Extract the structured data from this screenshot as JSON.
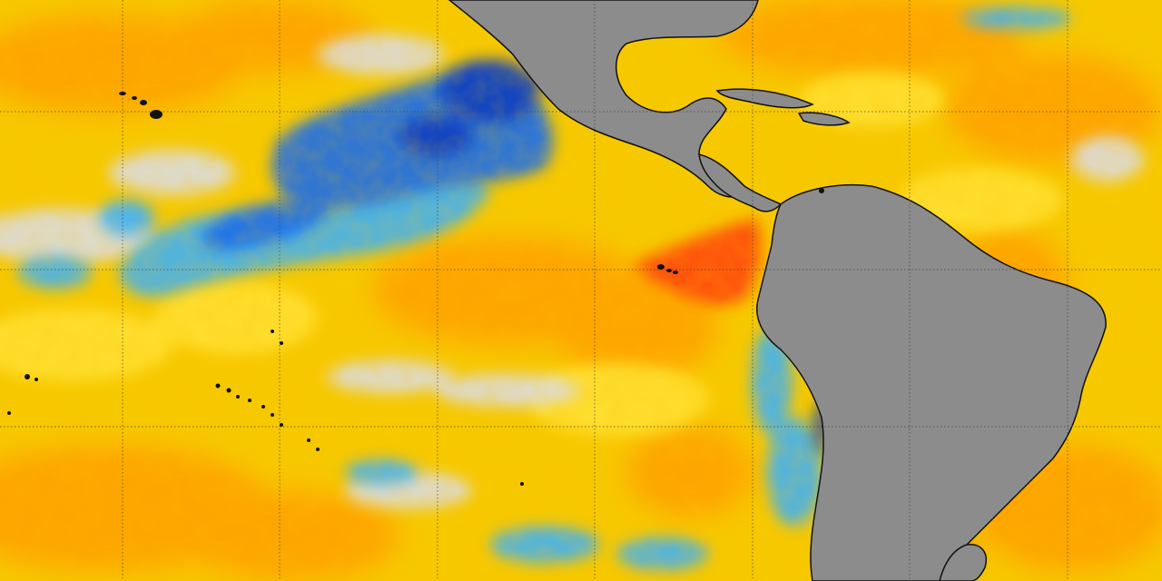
{
  "map": {
    "type": "sea-surface-temperature-anomaly",
    "palette": {
      "ocean_base": "#f6c800",
      "warm_light": "#ffe030",
      "warm_orange": "#ffa000",
      "hot_red": "#ff4a10",
      "neutral_gray": "#dcdcdc",
      "cool_light_blue": "#39b0ff",
      "cool_blue": "#1e6ee8",
      "cool_dark_blue": "#0a3cc0",
      "land": "#8c8c8c",
      "coast": "#111111",
      "grid": "#444444"
    },
    "land_masses": [
      "north-america",
      "central-america",
      "caribbean-islands",
      "south-america"
    ],
    "features": [
      "hawaiian-islands",
      "galapagos-islands",
      "polynesian-islands"
    ],
    "graticule": {
      "visible": true,
      "style": "dotted"
    }
  }
}
